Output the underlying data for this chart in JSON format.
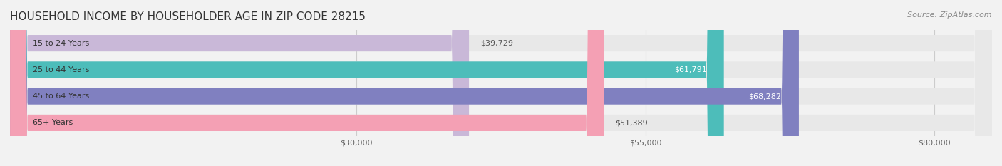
{
  "title": "HOUSEHOLD INCOME BY HOUSEHOLDER AGE IN ZIP CODE 28215",
  "source": "Source: ZipAtlas.com",
  "categories": [
    "15 to 24 Years",
    "25 to 44 Years",
    "45 to 64 Years",
    "65+ Years"
  ],
  "values": [
    39729,
    61791,
    68282,
    51389
  ],
  "bar_colors": [
    "#C9B8D8",
    "#4DBDBA",
    "#8080C0",
    "#F4A0B4"
  ],
  "label_colors": [
    "#666666",
    "#ffffff",
    "#ffffff",
    "#666666"
  ],
  "value_labels": [
    "$39,729",
    "$61,791",
    "$68,282",
    "$51,389"
  ],
  "xticks": [
    30000,
    55000,
    80000
  ],
  "xtick_labels": [
    "$30,000",
    "$55,000",
    "$80,000"
  ],
  "xlim": [
    0,
    85000
  ],
  "background_color": "#f2f2f2",
  "bar_background_color": "#e8e8e8",
  "title_fontsize": 11,
  "source_fontsize": 8,
  "bar_label_fontsize": 8,
  "tick_fontsize": 8
}
